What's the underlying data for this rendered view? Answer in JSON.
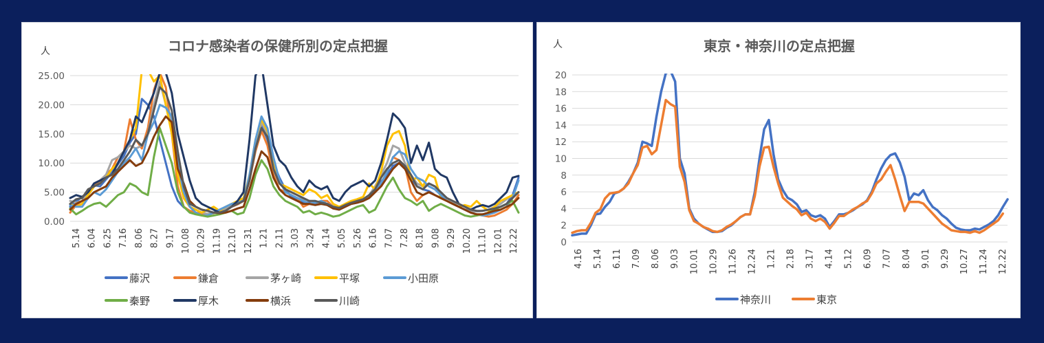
{
  "chart_data": [
    {
      "type": "line",
      "title": "コロナ感染者の保健所別の定点把握",
      "unit_label": "人",
      "ylim": [
        0,
        25
      ],
      "y_ticks": [
        "0.00",
        "5.00",
        "10.00",
        "15.00",
        "20.00",
        "25.00"
      ],
      "x_tick_labels": [
        "5.14",
        "6.04",
        "6.25",
        "7.16",
        "8.06",
        "8.27",
        "9.17",
        "10.08",
        "10.29",
        "11.19",
        "12.10",
        "12.31",
        "1.21",
        "2.11",
        "3.03",
        "3.24",
        "4.14",
        "5.05",
        "5.26",
        "6.16",
        "7.07",
        "7.28",
        "8.18",
        "9.08",
        "9.29",
        "10.20",
        "11.10",
        "12.01",
        "12.22"
      ],
      "grid": "horizontal",
      "legend_position": "bottom",
      "series": [
        {
          "name": "藤沢",
          "color": "#4472c4",
          "values": [
            2.5,
            3.4,
            4.2,
            5.0,
            6.2,
            6.0,
            7.2,
            8.4,
            9.8,
            11.2,
            13.5,
            15.0,
            21.0,
            20.0,
            18.0,
            14.0,
            10.0,
            6.0,
            3.5,
            2.4,
            1.8,
            1.5,
            1.2,
            1.2,
            1.5,
            1.8,
            2.2,
            2.6,
            3.0,
            3.8,
            7.5,
            12.5,
            16.5,
            14.0,
            10.0,
            7.5,
            5.5,
            4.2,
            3.8,
            3.3,
            3.2,
            3.1,
            3.0,
            2.9,
            2.5,
            2.3,
            2.6,
            3.0,
            3.2,
            3.5,
            4.2,
            5.5,
            6.8,
            8.0,
            9.5,
            10.0,
            9.0,
            7.5,
            6.0,
            5.5,
            5.2,
            4.5,
            4.0,
            3.5,
            3.0,
            2.5,
            2.0,
            1.8,
            1.7,
            1.8,
            2.0,
            2.2,
            2.5,
            3.0,
            4.5,
            7.5
          ]
        },
        {
          "name": "鎌倉",
          "color": "#ed7d31",
          "values": [
            1.5,
            2.8,
            3.5,
            4.5,
            6.0,
            7.0,
            8.0,
            9.0,
            11.0,
            12.0,
            17.5,
            14.0,
            12.5,
            16.0,
            22.5,
            25.5,
            23.0,
            15.0,
            6.0,
            2.5,
            1.8,
            1.5,
            1.3,
            1.2,
            1.4,
            1.7,
            2.1,
            2.5,
            2.9,
            3.5,
            7.0,
            12.0,
            15.5,
            13.0,
            8.0,
            5.5,
            5.0,
            4.5,
            4.0,
            2.5,
            3.0,
            3.2,
            3.5,
            3.5,
            2.5,
            2.2,
            2.5,
            3.0,
            3.5,
            3.8,
            4.0,
            5.0,
            6.5,
            8.5,
            11.0,
            10.5,
            9.5,
            5.0,
            3.5,
            4.5,
            5.0,
            4.5,
            4.0,
            3.5,
            3.0,
            2.5,
            2.0,
            1.5,
            1.2,
            1.0,
            0.8,
            1.0,
            1.5,
            2.0,
            3.0,
            4.5
          ]
        },
        {
          "name": "茅ヶ崎",
          "color": "#a5a5a5",
          "values": [
            3.5,
            3.2,
            3.5,
            5.0,
            6.5,
            7.0,
            8.0,
            10.5,
            11.0,
            12.0,
            13.0,
            12.5,
            13.0,
            15.0,
            20.0,
            24.0,
            20.0,
            17.0,
            10.0,
            4.0,
            2.5,
            2.0,
            1.5,
            1.3,
            1.4,
            1.8,
            2.2,
            2.7,
            3.0,
            3.5,
            7.5,
            12.5,
            17.0,
            15.0,
            9.0,
            6.5,
            5.5,
            5.0,
            4.5,
            3.8,
            3.5,
            3.3,
            3.2,
            3.0,
            2.6,
            2.4,
            2.8,
            3.2,
            3.4,
            3.8,
            4.5,
            6.0,
            8.0,
            10.0,
            13.0,
            12.5,
            10.0,
            8.0,
            6.5,
            6.0,
            6.5,
            6.0,
            5.0,
            4.0,
            3.2,
            2.5,
            2.0,
            1.8,
            1.7,
            1.8,
            2.0,
            2.5,
            3.0,
            3.8,
            4.5,
            5.0
          ]
        },
        {
          "name": "平塚",
          "color": "#ffc000",
          "values": [
            3.0,
            2.5,
            3.0,
            4.5,
            6.0,
            6.5,
            7.5,
            9.0,
            10.0,
            12.0,
            14.0,
            16.0,
            26.0,
            26.0,
            24.0,
            25.0,
            20.0,
            15.0,
            8.0,
            4.0,
            2.5,
            2.0,
            1.5,
            2.0,
            2.5,
            1.8,
            2.5,
            3.0,
            3.5,
            4.0,
            8.0,
            14.0,
            17.5,
            15.5,
            10.5,
            6.5,
            6.0,
            5.5,
            5.0,
            4.5,
            5.5,
            5.0,
            4.0,
            4.5,
            3.0,
            2.5,
            3.0,
            3.5,
            3.8,
            4.2,
            6.5,
            5.5,
            8.5,
            13.0,
            15.0,
            15.5,
            13.0,
            7.0,
            7.5,
            6.0,
            8.0,
            7.5,
            4.0,
            3.5,
            3.0,
            2.5,
            2.8,
            2.5,
            3.5,
            2.5,
            1.8,
            2.5,
            3.5,
            4.0,
            4.5,
            5.0
          ]
        },
        {
          "name": "小田原",
          "color": "#5b9bd5",
          "values": [
            2.8,
            2.5,
            2.5,
            4.0,
            5.0,
            4.5,
            5.5,
            7.0,
            8.5,
            10.0,
            11.0,
            12.5,
            10.5,
            15.0,
            17.0,
            20.0,
            19.5,
            18.0,
            10.0,
            5.0,
            2.5,
            1.5,
            1.0,
            1.0,
            1.5,
            2.0,
            2.5,
            3.0,
            3.2,
            3.5,
            8.0,
            14.0,
            18.0,
            16.0,
            11.0,
            7.0,
            5.0,
            4.5,
            4.0,
            3.5,
            3.0,
            3.2,
            3.5,
            3.0,
            2.2,
            2.0,
            2.5,
            3.0,
            3.5,
            3.5,
            4.0,
            5.0,
            6.5,
            8.5,
            11.0,
            12.0,
            11.5,
            9.0,
            7.5,
            7.0,
            6.0,
            5.5,
            4.5,
            3.5,
            3.0,
            2.5,
            2.0,
            1.5,
            1.2,
            1.0,
            1.2,
            1.5,
            2.0,
            2.5,
            4.0,
            7.0
          ]
        },
        {
          "name": "秦野",
          "color": "#70ad47",
          "values": [
            2.2,
            1.2,
            1.8,
            2.5,
            3.0,
            3.2,
            2.5,
            3.5,
            4.5,
            5.0,
            6.5,
            6.0,
            5.0,
            4.5,
            11.0,
            16.0,
            13.0,
            10.0,
            5.0,
            2.5,
            1.5,
            1.2,
            1.0,
            0.8,
            1.0,
            1.2,
            1.5,
            1.8,
            1.2,
            1.5,
            4.0,
            8.0,
            10.5,
            9.0,
            6.0,
            4.5,
            3.5,
            3.0,
            2.5,
            1.5,
            1.8,
            1.2,
            1.5,
            1.2,
            0.8,
            1.0,
            1.5,
            2.0,
            2.5,
            2.8,
            1.5,
            2.0,
            4.0,
            6.0,
            7.5,
            5.5,
            4.0,
            3.5,
            2.8,
            3.5,
            1.8,
            2.5,
            3.0,
            2.5,
            2.0,
            1.5,
            1.0,
            0.8,
            1.0,
            1.2,
            1.5,
            2.0,
            2.5,
            3.0,
            3.5,
            1.5
          ]
        },
        {
          "name": "厚木",
          "color": "#203864",
          "values": [
            4.0,
            4.5,
            4.2,
            5.0,
            6.5,
            7.0,
            7.5,
            8.0,
            10.0,
            12.0,
            14.0,
            18.0,
            17.0,
            19.5,
            22.0,
            25.5,
            25.5,
            22.0,
            15.0,
            11.0,
            7.0,
            4.0,
            3.0,
            2.5,
            2.0,
            1.5,
            1.8,
            2.5,
            3.5,
            5.0,
            14.0,
            25.0,
            27.0,
            20.0,
            13.0,
            10.5,
            9.5,
            7.5,
            6.0,
            5.0,
            7.0,
            6.0,
            5.5,
            6.0,
            4.0,
            3.5,
            5.0,
            6.0,
            6.5,
            7.0,
            6.0,
            7.0,
            10.0,
            14.0,
            18.5,
            17.5,
            16.0,
            10.0,
            13.0,
            10.5,
            13.5,
            9.0,
            8.0,
            7.5,
            5.0,
            3.0,
            2.5,
            2.0,
            2.5,
            2.8,
            2.5,
            3.0,
            4.0,
            5.0,
            7.5,
            7.8
          ]
        },
        {
          "name": "横浜",
          "color": "#843c0c",
          "values": [
            2.0,
            3.0,
            3.5,
            4.0,
            5.0,
            5.5,
            6.0,
            7.5,
            8.5,
            9.5,
            10.5,
            9.5,
            10.0,
            12.0,
            14.5,
            16.5,
            18.0,
            17.0,
            9.0,
            6.5,
            3.5,
            2.5,
            2.0,
            1.8,
            1.5,
            1.4,
            1.5,
            1.8,
            2.2,
            2.5,
            5.5,
            9.0,
            12.0,
            11.0,
            7.5,
            5.5,
            4.5,
            4.0,
            3.5,
            3.0,
            3.0,
            2.8,
            3.0,
            2.8,
            2.2,
            2.0,
            2.5,
            3.0,
            3.2,
            3.5,
            4.0,
            5.0,
            6.0,
            7.5,
            9.0,
            10.0,
            9.0,
            7.0,
            5.0,
            4.5,
            5.0,
            4.5,
            4.0,
            3.5,
            3.0,
            2.5,
            2.0,
            1.5,
            1.2,
            1.2,
            1.5,
            1.8,
            2.0,
            2.5,
            3.0,
            4.0
          ]
        },
        {
          "name": "川崎",
          "color": "#595959",
          "values": [
            3.0,
            3.8,
            4.0,
            5.5,
            6.0,
            6.5,
            7.5,
            8.0,
            9.0,
            10.5,
            12.0,
            14.0,
            13.0,
            15.0,
            19.0,
            23.0,
            22.0,
            19.0,
            12.0,
            6.0,
            3.0,
            2.5,
            2.0,
            1.8,
            1.5,
            1.5,
            1.8,
            2.5,
            3.0,
            3.5,
            7.0,
            12.5,
            16.0,
            14.5,
            9.0,
            6.5,
            5.5,
            5.0,
            4.5,
            4.0,
            3.5,
            3.5,
            3.2,
            3.0,
            2.5,
            2.3,
            2.8,
            3.2,
            3.5,
            3.8,
            4.5,
            5.5,
            7.5,
            9.0,
            10.0,
            10.5,
            9.5,
            8.0,
            6.0,
            5.5,
            6.5,
            6.0,
            5.0,
            4.0,
            3.5,
            3.0,
            2.5,
            2.0,
            1.8,
            1.8,
            2.0,
            2.2,
            2.5,
            3.0,
            4.0,
            5.0
          ]
        }
      ]
    },
    {
      "type": "line",
      "title": "東京・神奈川の定点把握",
      "unit_label": "人",
      "ylim": [
        0,
        20
      ],
      "y_ticks": [
        "0",
        "2",
        "4",
        "6",
        "8",
        "10",
        "12",
        "14",
        "16",
        "18",
        "20"
      ],
      "x_tick_labels": [
        "4.16",
        "5.14",
        "6.11",
        "7.09",
        "8.06",
        "9.03",
        "10.01",
        "10.29",
        "11.26",
        "12.24",
        "1.21",
        "2.18",
        "3.17",
        "4.14",
        "5.12",
        "6.09",
        "7.07",
        "8.04",
        "9.01",
        "9.29",
        "10.27",
        "11.24",
        "12.22"
      ],
      "grid": "horizontal",
      "legend_position": "bottom",
      "series": [
        {
          "name": "神奈川",
          "color": "#4472c4",
          "values": [
            0.8,
            0.9,
            1.0,
            1.0,
            2.0,
            3.3,
            3.4,
            4.2,
            4.8,
            5.8,
            6.0,
            6.4,
            7.2,
            8.2,
            9.5,
            12.0,
            11.8,
            11.5,
            15.0,
            18.0,
            20.2,
            20.5,
            19.2,
            10.0,
            8.2,
            4.0,
            2.8,
            2.2,
            1.8,
            1.5,
            1.2,
            1.2,
            1.3,
            1.7,
            2.0,
            2.5,
            3.0,
            3.3,
            3.3,
            6.0,
            10.0,
            13.5,
            14.6,
            10.5,
            7.5,
            6.2,
            5.3,
            5.0,
            4.5,
            3.6,
            3.8,
            3.2,
            3.0,
            3.2,
            2.8,
            1.8,
            2.5,
            3.3,
            3.3,
            3.5,
            3.8,
            4.2,
            4.5,
            5.0,
            6.0,
            7.5,
            8.8,
            9.8,
            10.4,
            10.6,
            9.5,
            7.8,
            5.0,
            5.8,
            5.6,
            6.2,
            5.0,
            4.2,
            3.8,
            3.2,
            2.8,
            2.2,
            1.7,
            1.5,
            1.4,
            1.4,
            1.6,
            1.5,
            1.8,
            2.1,
            2.5,
            3.2,
            4.2,
            5.1
          ]
        },
        {
          "name": "東京",
          "color": "#ed7d31",
          "values": [
            1.1,
            1.3,
            1.4,
            1.4,
            2.3,
            3.5,
            3.9,
            5.2,
            5.8,
            5.9,
            6.0,
            6.4,
            7.0,
            8.2,
            9.2,
            11.3,
            11.5,
            10.5,
            11.0,
            14.0,
            17.0,
            16.5,
            16.2,
            9.0,
            7.2,
            3.8,
            2.5,
            2.2,
            1.8,
            1.6,
            1.3,
            1.2,
            1.4,
            1.8,
            2.1,
            2.5,
            3.0,
            3.3,
            3.3,
            5.5,
            9.0,
            11.3,
            11.4,
            9.0,
            7.0,
            5.3,
            4.8,
            4.3,
            3.9,
            3.2,
            3.5,
            2.8,
            2.5,
            2.8,
            2.4,
            1.6,
            2.3,
            3.1,
            3.1,
            3.5,
            3.9,
            4.2,
            4.6,
            4.9,
            5.8,
            7.0,
            7.5,
            8.4,
            9.2,
            7.5,
            5.5,
            3.7,
            4.8,
            4.8,
            4.8,
            4.6,
            4.0,
            3.4,
            2.8,
            2.2,
            1.8,
            1.4,
            1.3,
            1.2,
            1.2,
            1.1,
            1.3,
            1.1,
            1.4,
            1.8,
            2.2,
            2.6,
            3.4
          ]
        }
      ]
    }
  ]
}
